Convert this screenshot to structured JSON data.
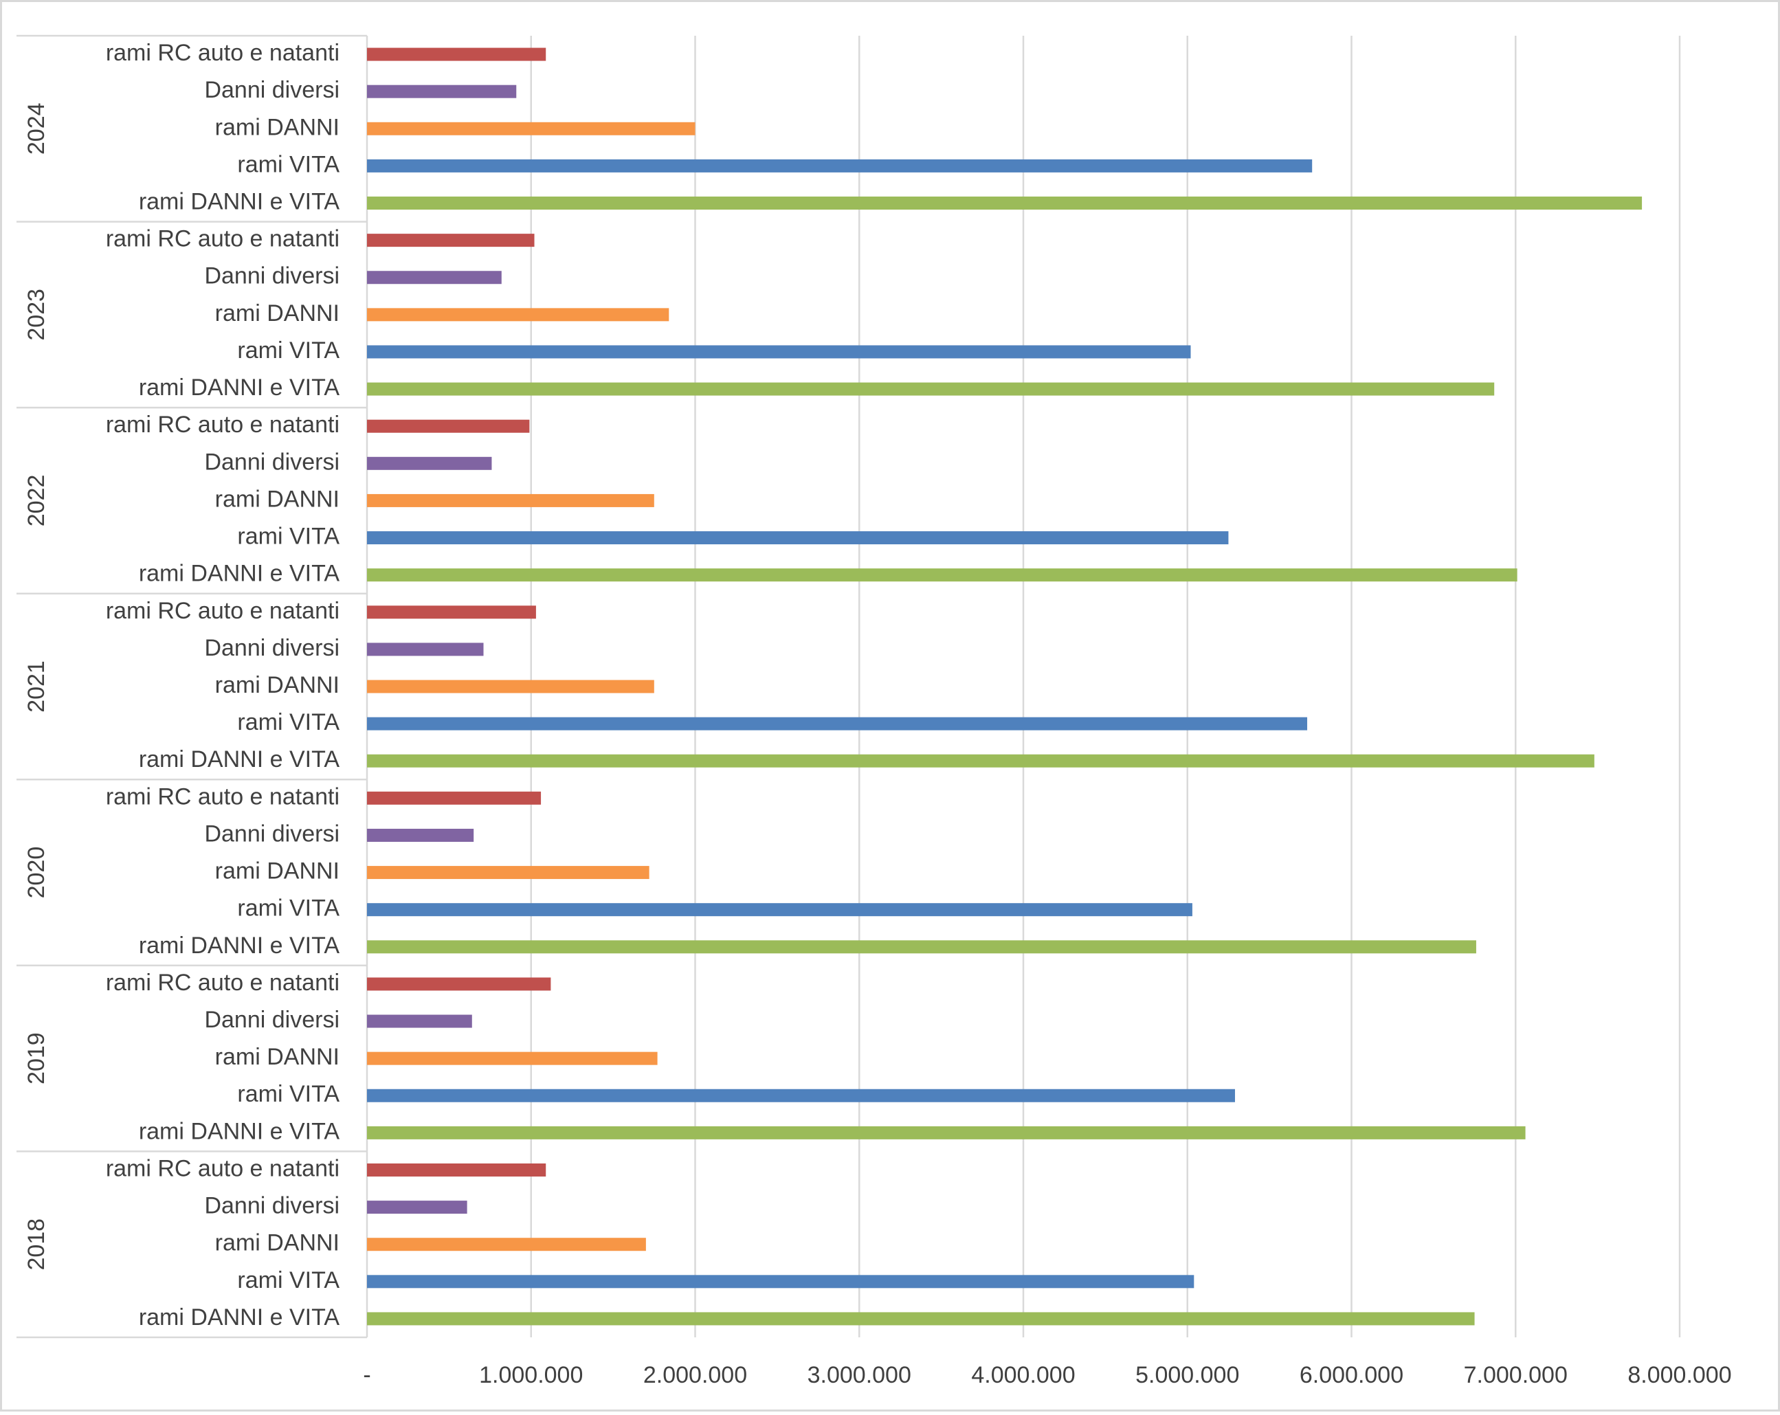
{
  "chart_data": {
    "type": "bar",
    "orientation": "horizontal",
    "title": "",
    "xlabel": "",
    "ylabel": "",
    "xlim": [
      0,
      8000000
    ],
    "x_ticks": [
      0,
      1000000,
      2000000,
      3000000,
      4000000,
      5000000,
      6000000,
      7000000,
      8000000
    ],
    "x_tick_labels": [
      "-",
      "1.000.000",
      "2.000.000",
      "3.000.000",
      "4.000.000",
      "5.000.000",
      "6.000.000",
      "7.000.000",
      "8.000.000"
    ],
    "grid": "vertical",
    "legend": "none",
    "categories": [
      "rami RC auto e natanti",
      "Danni diversi",
      "rami DANNI",
      "rami VITA",
      "rami DANNI e VITA"
    ],
    "colors": {
      "rami RC auto e natanti": "#c0504d",
      "Danni diversi": "#8064a2",
      "rami DANNI": "#f79646",
      "rami VITA": "#4f81bd",
      "rami DANNI e VITA": "#9bbb59"
    },
    "groups": [
      {
        "year": "2024",
        "values": [
          1090000,
          910000,
          2000000,
          5760000,
          7770000
        ]
      },
      {
        "year": "2023",
        "values": [
          1020000,
          820000,
          1840000,
          5020000,
          6870000
        ]
      },
      {
        "year": "2022",
        "values": [
          990000,
          760000,
          1750000,
          5250000,
          7010000
        ]
      },
      {
        "year": "2021",
        "values": [
          1030000,
          710000,
          1750000,
          5730000,
          7480000
        ]
      },
      {
        "year": "2020",
        "values": [
          1060000,
          650000,
          1720000,
          5030000,
          6760000
        ]
      },
      {
        "year": "2019",
        "values": [
          1120000,
          640000,
          1770000,
          5290000,
          7060000
        ]
      },
      {
        "year": "2018",
        "values": [
          1090000,
          610000,
          1700000,
          5040000,
          6750000
        ]
      }
    ]
  }
}
